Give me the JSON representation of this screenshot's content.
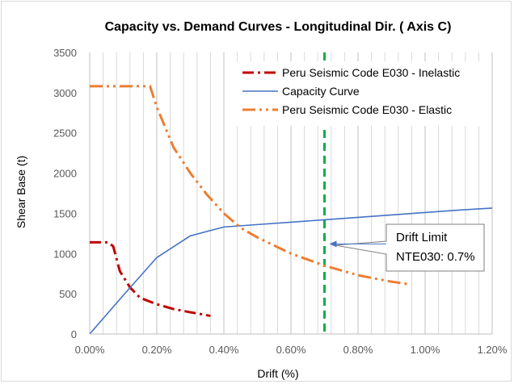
{
  "chart_data": {
    "type": "line",
    "title": "Capacity vs. Demand Curves - Longitudinal Dir. ( Axis C)",
    "xlabel": "Drift (%)",
    "ylabel": "Shear Base (t)",
    "xlim": [
      0,
      1.2
    ],
    "ylim": [
      0,
      3500
    ],
    "x_ticks": [
      0,
      0.2,
      0.4,
      0.6,
      0.8,
      1.0,
      1.2
    ],
    "x_tick_labels": [
      "0.00%",
      "0.20%",
      "0.40%",
      "0.60%",
      "0.80%",
      "1.00%",
      "1.20%"
    ],
    "y_ticks": [
      0,
      500,
      1000,
      1500,
      2000,
      2500,
      3000,
      3500
    ],
    "y_tick_labels": [
      "0",
      "500",
      "1000",
      "1500",
      "2000",
      "2500",
      "3000",
      "3500"
    ],
    "grid": "vertical",
    "legend_position": "top-right",
    "series": [
      {
        "name": "Peru Seismic Code E030 - Inelastic",
        "color": "#c00000",
        "style": "dash-dot",
        "x": [
          0,
          0.055,
          0.07,
          0.09,
          0.12,
          0.15,
          0.2,
          0.25,
          0.3,
          0.36
        ],
        "y": [
          1140,
          1140,
          1090,
          780,
          580,
          450,
          370,
          310,
          270,
          225
        ]
      },
      {
        "name": "Capacity Curve",
        "color": "#4472c4",
        "style": "solid",
        "x": [
          0,
          0.1,
          0.2,
          0.3,
          0.4,
          0.5,
          0.6,
          0.7,
          0.8,
          0.9,
          1.0,
          1.1,
          1.2
        ],
        "y": [
          0,
          480,
          950,
          1220,
          1330,
          1360,
          1390,
          1420,
          1450,
          1480,
          1510,
          1540,
          1565
        ]
      },
      {
        "name": "Peru Seismic Code E030 - Elastic",
        "color": "#ed7d31",
        "style": "dash-dot-dot",
        "x": [
          0,
          0.18,
          0.2,
          0.25,
          0.3,
          0.35,
          0.4,
          0.45,
          0.5,
          0.6,
          0.7,
          0.8,
          0.9,
          0.95
        ],
        "y": [
          3080,
          3080,
          2820,
          2320,
          2000,
          1730,
          1500,
          1320,
          1200,
          1000,
          850,
          730,
          650,
          620
        ]
      }
    ],
    "reference_line": {
      "x": 0.7,
      "color": "#00b050",
      "style": "dashed"
    },
    "annotation": {
      "lines": [
        "Drift Limit",
        "NTE030: 0.7%"
      ],
      "points_to_x": 0.7,
      "points_to_y": 1120
    }
  }
}
